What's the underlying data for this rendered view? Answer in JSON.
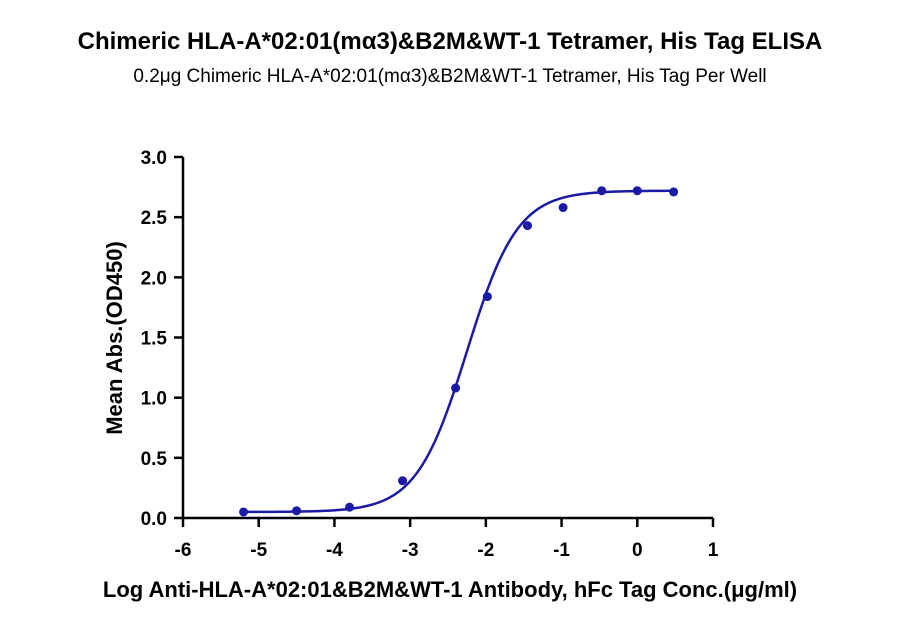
{
  "title": "Chimeric HLA-A*02:01(mα3)&B2M&WT-1 Tetramer, His Tag ELISA",
  "subtitle": "0.2μg Chimeric HLA-A*02:01(mα3)&B2M&WT-1 Tetramer, His Tag Per Well",
  "colors": {
    "series": "#1a1aa6",
    "axis": "#000000"
  },
  "chart_data": {
    "type": "scatter",
    "xlabel": "Log Anti-HLA-A*02:01&B2M&WT-1 Antibody, hFc Tag Conc.(μg/ml)",
    "ylabel": "Mean Abs.(OD450)",
    "xlim": [
      -6,
      1
    ],
    "ylim": [
      0,
      3
    ],
    "x_ticks": [
      "-6",
      "-5",
      "-4",
      "-3",
      "-2",
      "-1",
      "0",
      "1"
    ],
    "y_ticks": [
      "0.0",
      "0.5",
      "1.0",
      "1.5",
      "2.0",
      "2.5",
      "3.0"
    ],
    "grid": false,
    "series": [
      {
        "points": [
          {
            "x": -5.2,
            "y": 0.05
          },
          {
            "x": -4.5,
            "y": 0.06
          },
          {
            "x": -3.8,
            "y": 0.09
          },
          {
            "x": -3.1,
            "y": 0.31
          },
          {
            "x": -2.4,
            "y": 1.08
          },
          {
            "x": -1.98,
            "y": 1.84
          },
          {
            "x": -1.45,
            "y": 2.43
          },
          {
            "x": -0.98,
            "y": 2.58
          },
          {
            "x": -0.47,
            "y": 2.72
          },
          {
            "x": 0.0,
            "y": 2.72
          },
          {
            "x": 0.48,
            "y": 2.71
          }
        ],
        "fit": {
          "bottom": 0.05,
          "top": 2.72,
          "log_ec50": -2.25,
          "hill_slope": 1.3
        }
      }
    ]
  }
}
